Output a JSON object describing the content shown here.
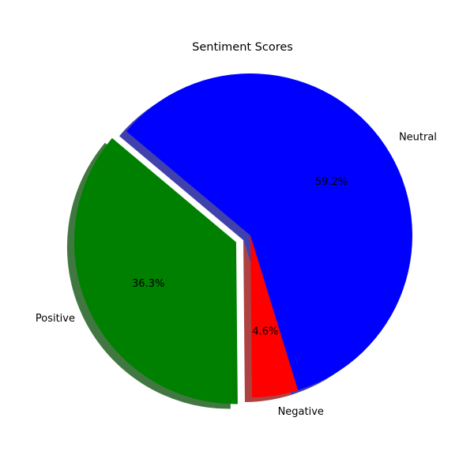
{
  "chart_data": {
    "type": "pie",
    "title": "Sentiment Scores",
    "slices": [
      {
        "label": "Positive",
        "value": 36.3,
        "pct_label": "36.3%",
        "color": "#008000",
        "exploded": true
      },
      {
        "label": "Negative",
        "value": 4.6,
        "pct_label": "4.6%",
        "color": "#ff0000",
        "exploded": false
      },
      {
        "label": "Neutral",
        "value": 59.2,
        "pct_label": "59.2%",
        "color": "#0000ff",
        "exploded": false
      }
    ],
    "start_angle_deg": 140,
    "direction": "counterclockwise",
    "shadow": true
  }
}
